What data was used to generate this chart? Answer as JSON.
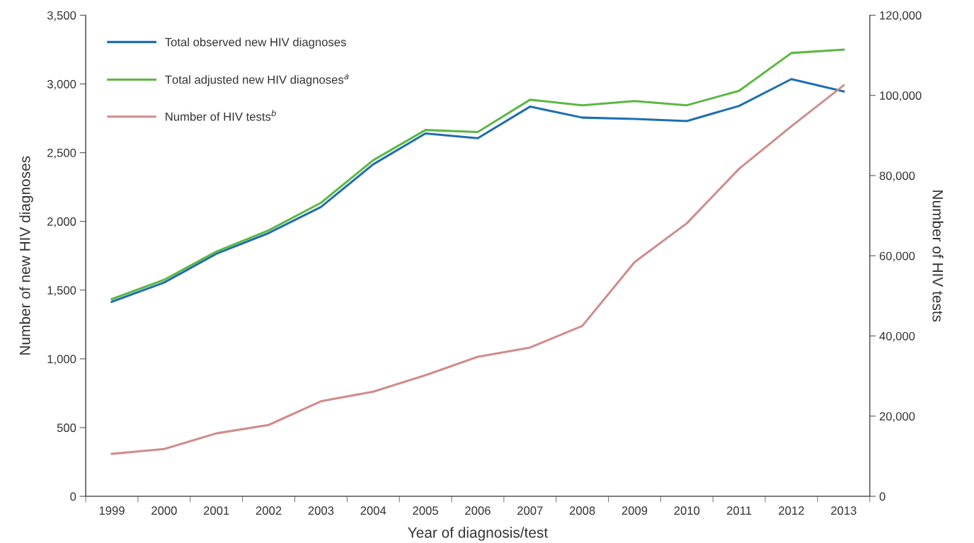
{
  "chart_data": {
    "type": "line",
    "xlabel": "Year of diagnosis/test",
    "ylabel": "Number of new HIV diagnoses",
    "y2label": "Number of HIV tests",
    "categories": [
      "1999",
      "2000",
      "2001",
      "2002",
      "2003",
      "2004",
      "2005",
      "2006",
      "2007",
      "2008",
      "2009",
      "2010",
      "2011",
      "2012",
      "2013"
    ],
    "series": [
      {
        "name": "Total observed new HIV diagnoses",
        "color": "#1f6eb0",
        "values": [
          1415,
          1555,
          1765,
          1915,
          2105,
          2415,
          2640,
          2605,
          2835,
          2755,
          2745,
          2730,
          2840,
          3035,
          2945
        ]
      },
      {
        "name": "Total adjusted new HIV diagnoses$^{a}$",
        "color": "#5db744",
        "values": [
          1435,
          1575,
          1780,
          1935,
          2135,
          2445,
          2665,
          2650,
          2885,
          2845,
          2875,
          2845,
          2950,
          3225,
          3250
        ]
      },
      {
        "name": "Number of HIV tests$^{b}$",
        "color": "#d08c8c",
        "axis": "y2",
        "values": [
          10600,
          11800,
          15700,
          17800,
          23700,
          26100,
          30200,
          34800,
          37100,
          42500,
          58400,
          68100,
          81700,
          92300,
          102500
        ]
      }
    ],
    "ylim": [
      0,
      3500
    ],
    "yticks": [
      0,
      {
        "value": 500,
        "label": "500"
      },
      {
        "value": 1000,
        "label": "1,000"
      },
      {
        "value": 1500,
        "label": "1,500"
      },
      {
        "value": 2000,
        "label": "2,000"
      },
      {
        "value": 2500,
        "label": "2,500"
      },
      {
        "value": 3000,
        "label": "3,000"
      },
      {
        "value": 3500,
        "label": "3,500"
      }
    ],
    "y2lim": [
      0,
      120000
    ],
    "y2ticks": [
      0,
      {
        "value": 20000,
        "label": "20,000"
      },
      {
        "value": 40000,
        "label": "40,000"
      },
      {
        "value": 60000,
        "label": "60,000"
      },
      {
        "value": 80000,
        "label": "80,000"
      },
      {
        "value": 100000,
        "label": "100,000"
      },
      {
        "value": 120000,
        "label": "120,000"
      }
    ],
    "legend": "top left",
    "grid": false,
    "marker": "none",
    "line_style": "solid"
  }
}
